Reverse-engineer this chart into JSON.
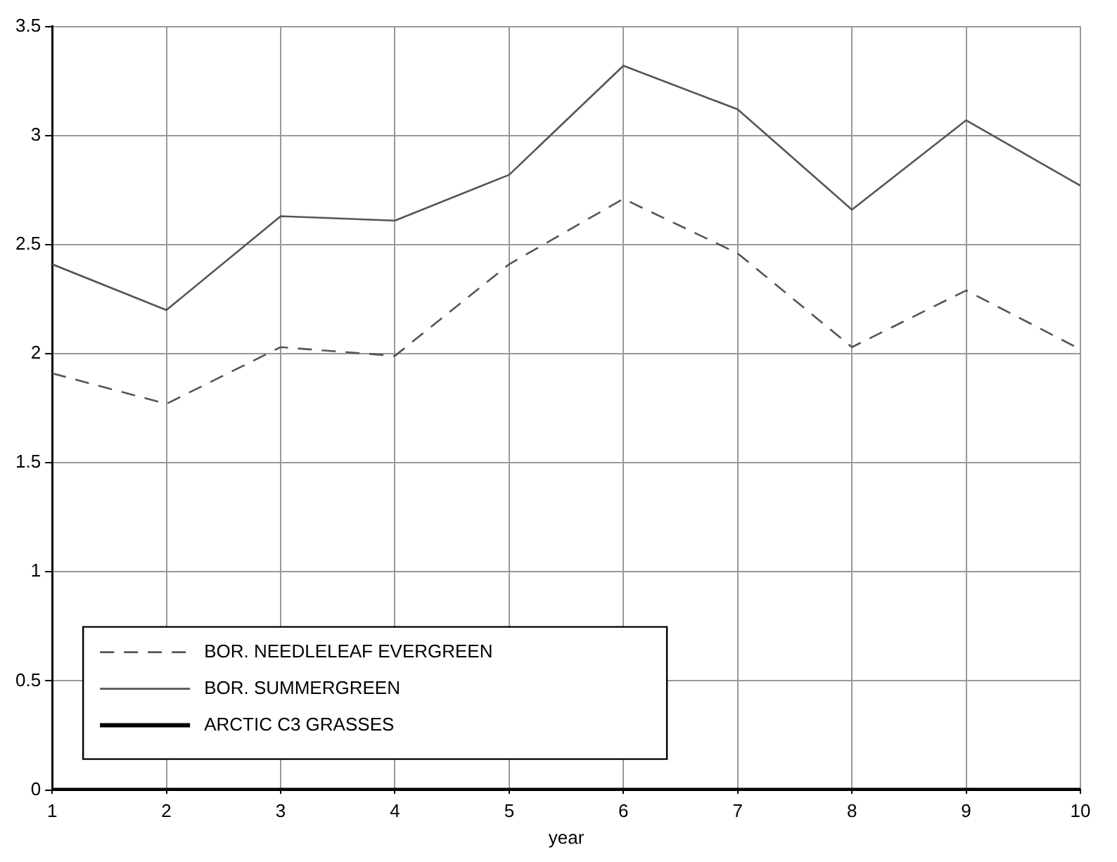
{
  "chart_data": {
    "type": "line",
    "xlabel": "year",
    "x": [
      1,
      2,
      3,
      4,
      5,
      6,
      7,
      8,
      9,
      10
    ],
    "xlim": [
      1,
      10
    ],
    "xticks": [
      1,
      2,
      3,
      4,
      5,
      6,
      7,
      8,
      9,
      10
    ],
    "ylim": [
      0,
      3.5
    ],
    "yticks": [
      0,
      0.5,
      1,
      1.5,
      2,
      2.5,
      3,
      3.5
    ],
    "grid": true,
    "legend": "bottom left",
    "marker": "none",
    "series": [
      {
        "name": "BOR. NEEDLELEAF EVERGREEN",
        "color": "#555555",
        "line_style": "dashed",
        "values": [
          1.91,
          1.77,
          2.03,
          1.99,
          2.41,
          2.71,
          2.46,
          2.03,
          2.29,
          2.02
        ]
      },
      {
        "name": "BOR. SUMMERGREEN",
        "color": "#555555",
        "line_style": "solid",
        "values": [
          2.41,
          2.2,
          2.63,
          2.61,
          2.82,
          3.32,
          3.12,
          2.66,
          3.07,
          2.77
        ]
      },
      {
        "name": "ARCTIC C3 GRASSES",
        "color": "#000000",
        "line_style": "solid",
        "values": [
          0,
          0,
          0,
          0,
          0,
          0,
          0,
          0,
          0,
          0
        ]
      }
    ]
  }
}
